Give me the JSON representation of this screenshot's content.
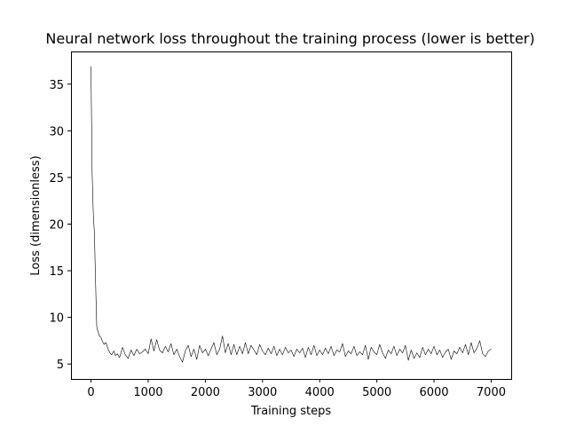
{
  "chart_data": {
    "type": "line",
    "title": "Neural network loss throughout the training process (lower is better)",
    "xlabel": "Training steps",
    "ylabel": "Loss (dimensionless)",
    "xlim": [
      -350,
      7350
    ],
    "ylim": [
      3.4,
      38.5
    ],
    "xticks": [
      0,
      1000,
      2000,
      3000,
      4000,
      5000,
      6000,
      7000
    ],
    "yticks": [
      5,
      10,
      15,
      20,
      25,
      30,
      35
    ],
    "grid": false,
    "series": [
      {
        "line_color": "#000000",
        "x": [
          0,
          20,
          40,
          60,
          80,
          100,
          120,
          150,
          180,
          200,
          230,
          260,
          300,
          330,
          360,
          400,
          430,
          460,
          500,
          550,
          600,
          650,
          700,
          750,
          800,
          850,
          900,
          950,
          1000,
          1050,
          1100,
          1150,
          1200,
          1250,
          1300,
          1350,
          1400,
          1450,
          1500,
          1550,
          1600,
          1650,
          1700,
          1750,
          1800,
          1850,
          1900,
          1950,
          2000,
          2050,
          2100,
          2150,
          2200,
          2250,
          2300,
          2350,
          2400,
          2450,
          2500,
          2550,
          2600,
          2650,
          2700,
          2750,
          2800,
          2850,
          2900,
          2950,
          3000,
          3050,
          3100,
          3150,
          3200,
          3250,
          3300,
          3350,
          3400,
          3450,
          3500,
          3550,
          3600,
          3650,
          3700,
          3750,
          3800,
          3850,
          3900,
          3950,
          4000,
          4050,
          4100,
          4150,
          4200,
          4250,
          4300,
          4350,
          4400,
          4450,
          4500,
          4550,
          4600,
          4650,
          4700,
          4750,
          4800,
          4850,
          4900,
          4950,
          5000,
          5050,
          5100,
          5150,
          5200,
          5250,
          5300,
          5350,
          5400,
          5450,
          5500,
          5550,
          5600,
          5650,
          5700,
          5750,
          5800,
          5850,
          5900,
          5950,
          6000,
          6050,
          6100,
          6150,
          6200,
          6250,
          6300,
          6350,
          6400,
          6450,
          6500,
          6550,
          6600,
          6650,
          6700,
          6750,
          6800,
          6850,
          6900,
          6950,
          7000
        ],
        "values": [
          36.9,
          25.5,
          21.2,
          19.0,
          13.8,
          9.0,
          8.5,
          8.0,
          7.8,
          7.4,
          7.1,
          7.3,
          6.6,
          6.2,
          6.0,
          6.4,
          5.9,
          6.1,
          5.7,
          6.8,
          6.0,
          5.6,
          6.5,
          5.9,
          6.6,
          6.1,
          6.3,
          6.6,
          6.1,
          7.7,
          6.4,
          7.6,
          6.5,
          6.2,
          6.9,
          6.3,
          7.2,
          6.0,
          6.6,
          5.8,
          5.2,
          6.4,
          7.0,
          5.8,
          6.6,
          5.5,
          7.0,
          6.2,
          6.6,
          5.9,
          6.6,
          7.3,
          6.0,
          6.6,
          8.0,
          6.2,
          7.2,
          6.0,
          7.1,
          6.0,
          6.9,
          6.1,
          7.3,
          6.1,
          7.0,
          6.5,
          6.0,
          7.1,
          6.4,
          6.0,
          6.7,
          6.1,
          6.9,
          5.9,
          6.6,
          6.0,
          6.8,
          6.2,
          6.5,
          5.8,
          6.6,
          6.2,
          6.7,
          5.7,
          6.8,
          6.0,
          7.0,
          5.9,
          6.5,
          6.0,
          6.7,
          6.1,
          6.9,
          5.9,
          6.5,
          6.3,
          7.2,
          5.8,
          6.4,
          6.1,
          6.9,
          5.9,
          6.3,
          6.0,
          7.0,
          5.5,
          6.8,
          6.3,
          6.0,
          7.1,
          6.2,
          5.6,
          6.5,
          6.1,
          6.9,
          5.9,
          6.6,
          6.2,
          7.0,
          5.4,
          6.5,
          5.6,
          6.2,
          5.7,
          6.8,
          6.0,
          6.6,
          6.1,
          6.9,
          6.0,
          6.5,
          5.7,
          6.3,
          6.6,
          5.5,
          6.4,
          6.1,
          6.8,
          6.2,
          7.1,
          6.0,
          7.3,
          6.2,
          6.7,
          7.5,
          6.1,
          5.8,
          6.4,
          6.6
        ]
      }
    ]
  }
}
